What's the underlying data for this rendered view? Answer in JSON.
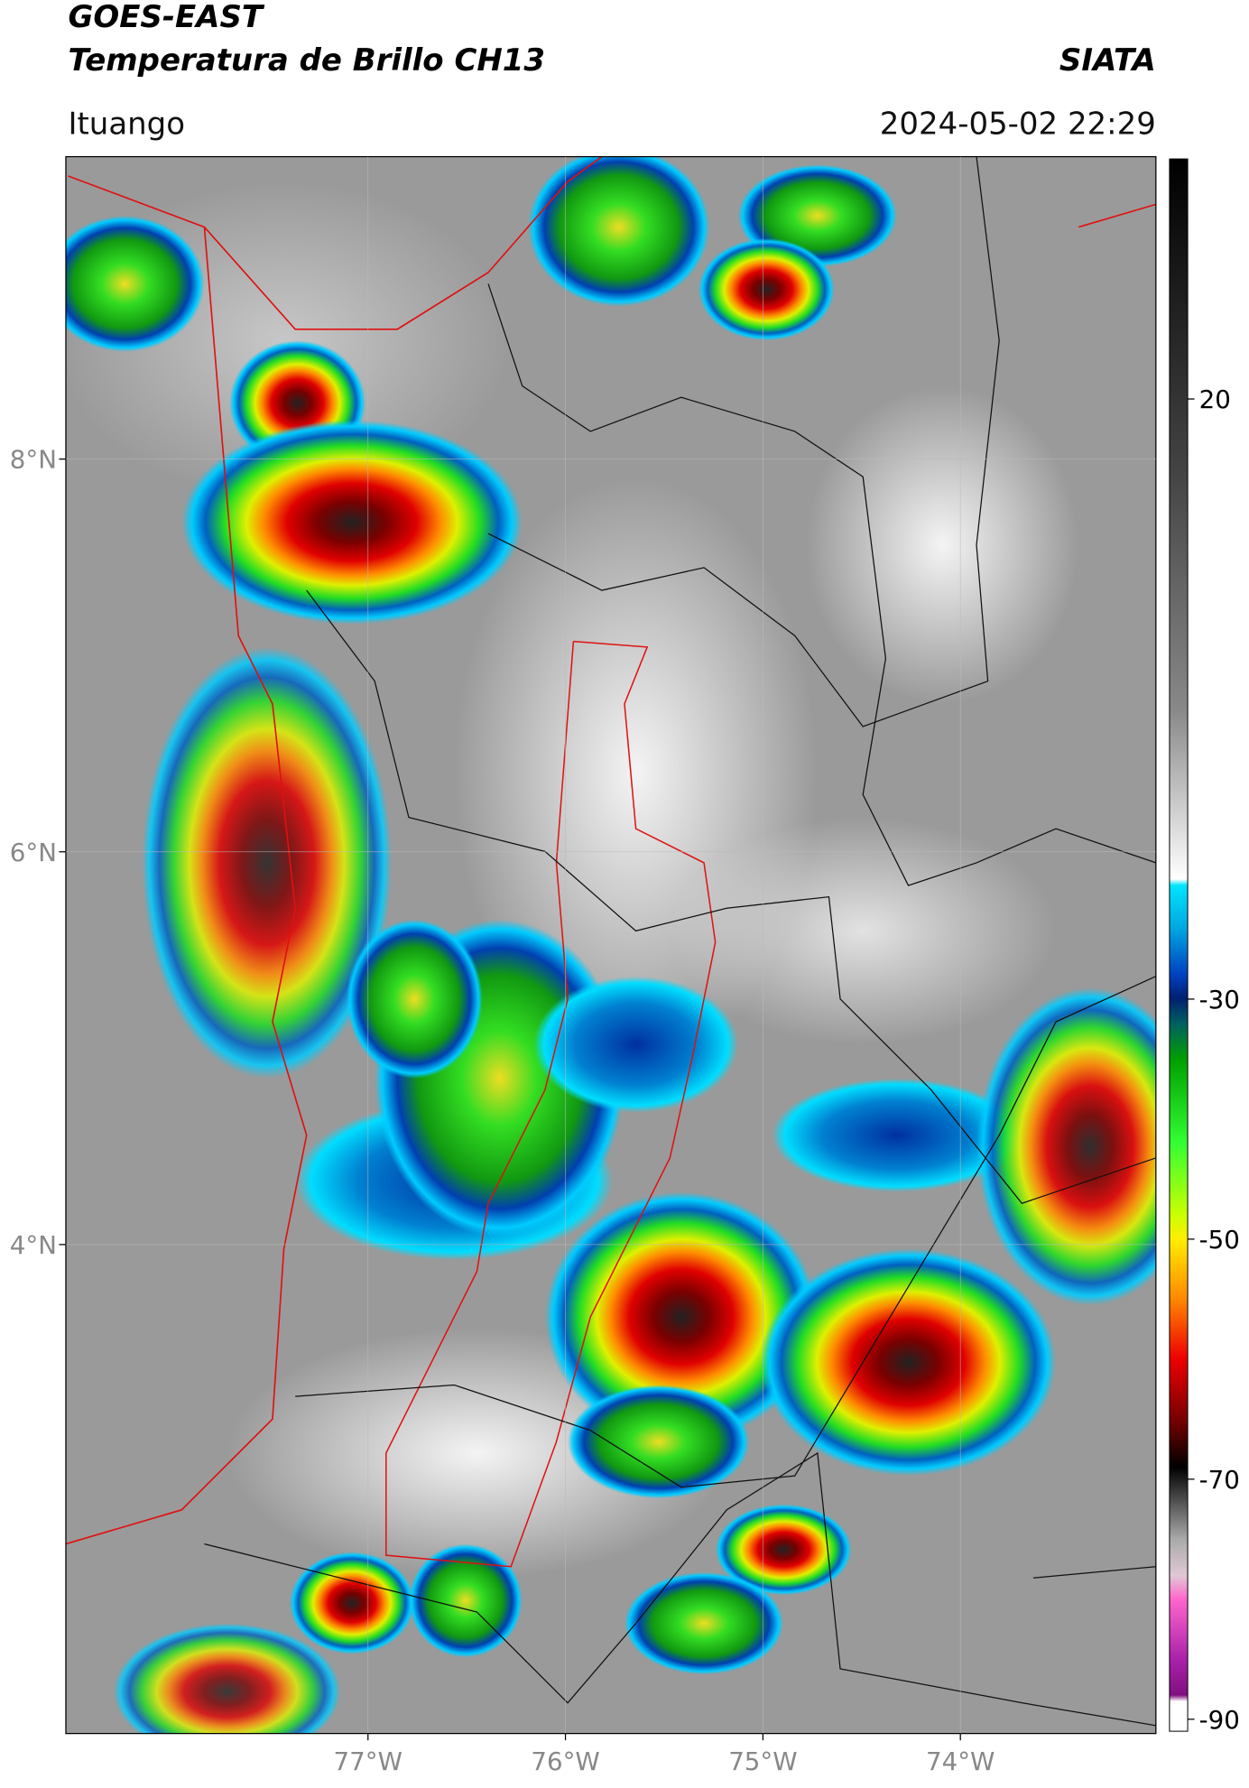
{
  "header": {
    "title": "GOES-EAST",
    "subtitle": "Temperatura de Brillo CH13",
    "source": "SIATA",
    "location": "Ituango",
    "datetime": "2024-05-02 22:29"
  },
  "map": {
    "xlim": [
      -78.53,
      -73.01
    ],
    "ylim": [
      1.51,
      9.54
    ],
    "xticks": [
      {
        "value": -77,
        "label": "77°W"
      },
      {
        "value": -76,
        "label": "76°W"
      },
      {
        "value": -75,
        "label": "75°W"
      },
      {
        "value": -74,
        "label": "74°W"
      }
    ],
    "yticks": [
      {
        "value": 8,
        "label": "8°N"
      },
      {
        "value": 6,
        "label": "6°N"
      },
      {
        "value": 4,
        "label": "4°N"
      }
    ]
  },
  "colorbar": {
    "lim": [
      -91,
      40
    ],
    "ticks": [
      20,
      -30,
      -50,
      -70,
      -90
    ]
  }
}
